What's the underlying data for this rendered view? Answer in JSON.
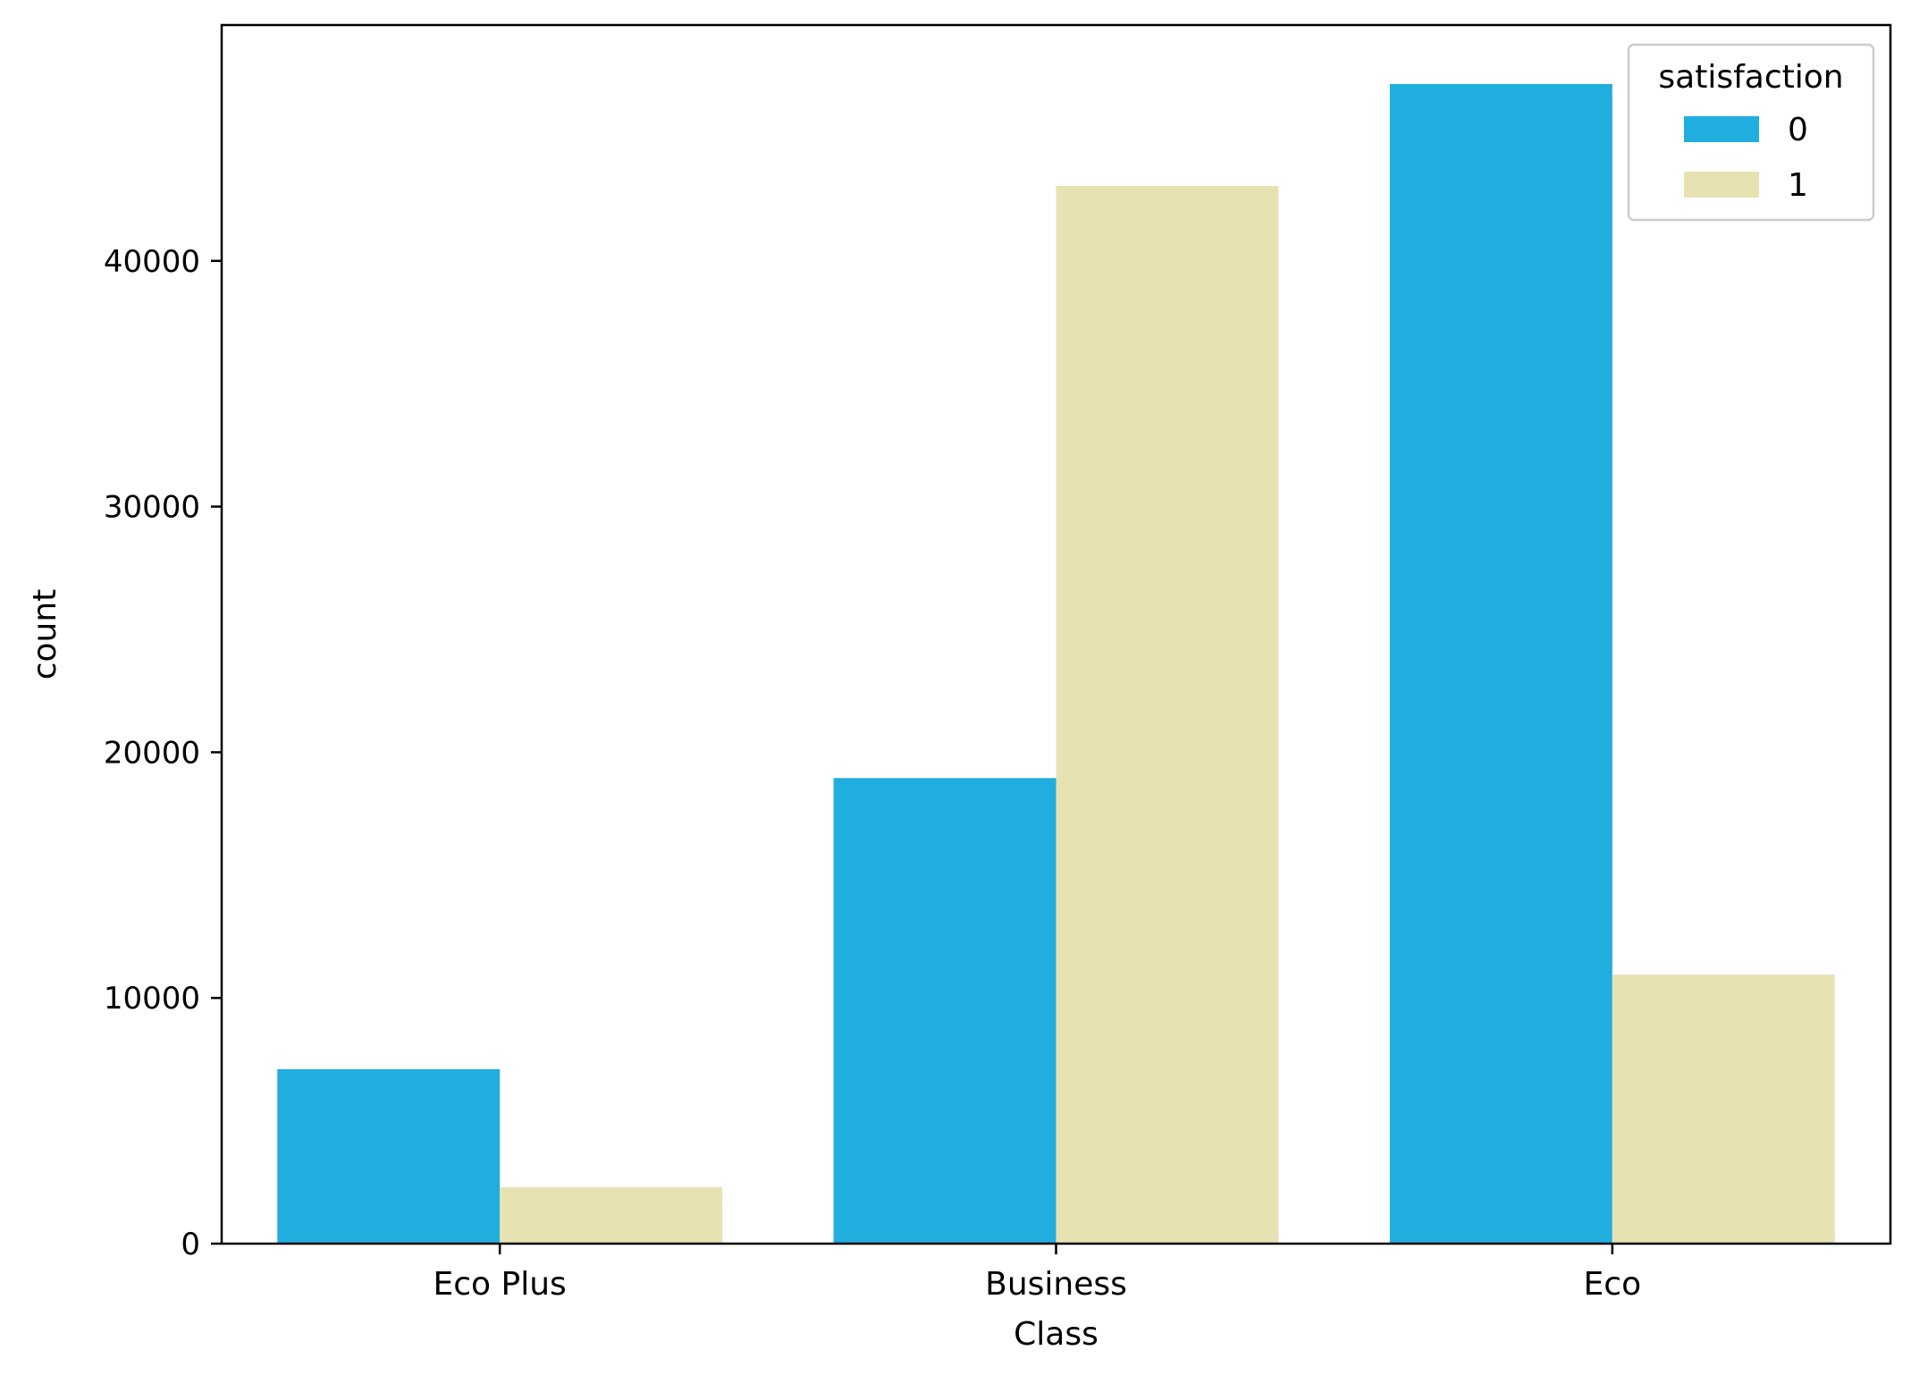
{
  "chart_data": {
    "type": "bar",
    "title": "",
    "xlabel": "Class",
    "ylabel": "count",
    "categories": [
      "Eco Plus",
      "Business",
      "Eco"
    ],
    "series": [
      {
        "name": "0",
        "color": "#20aedf",
        "values": [
          7100,
          18950,
          47200
        ]
      },
      {
        "name": "1",
        "color": "#e6e2b2",
        "values": [
          2300,
          43050,
          10950
        ]
      }
    ],
    "ylim": [
      0,
      49600
    ],
    "yticks": [
      0,
      10000,
      20000,
      30000,
      40000
    ],
    "grid": false,
    "legend": {
      "title": "satisfaction",
      "position": "top-right"
    }
  }
}
